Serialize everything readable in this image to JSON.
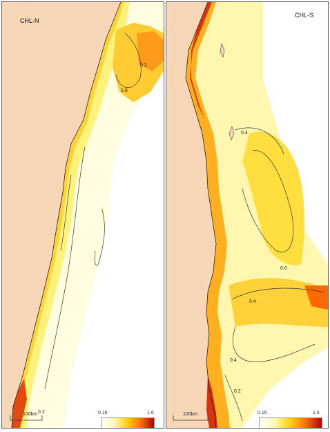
{
  "panels": [
    {
      "label": "CHL-N",
      "contours": [
        "0.2",
        "0.6",
        "0.2"
      ],
      "scale": "100km",
      "colorbar": {
        "min": "0.16",
        "max": "1.6"
      }
    },
    {
      "label": "CHL-S",
      "contours": [
        "0.4",
        "0.6",
        "0.4",
        "0.4",
        "0.2"
      ],
      "scale": "100km",
      "colorbar": {
        "min": "0.16",
        "max": "1.6"
      }
    }
  ],
  "colors": {
    "land": "#f7d6b8",
    "low": "#ffffff",
    "mid_low": "#fff7b0",
    "mid": "#ffd000",
    "high": "#ff6a00",
    "max": "#b30000",
    "contour": "#333333",
    "border": "#5a5a5a"
  }
}
